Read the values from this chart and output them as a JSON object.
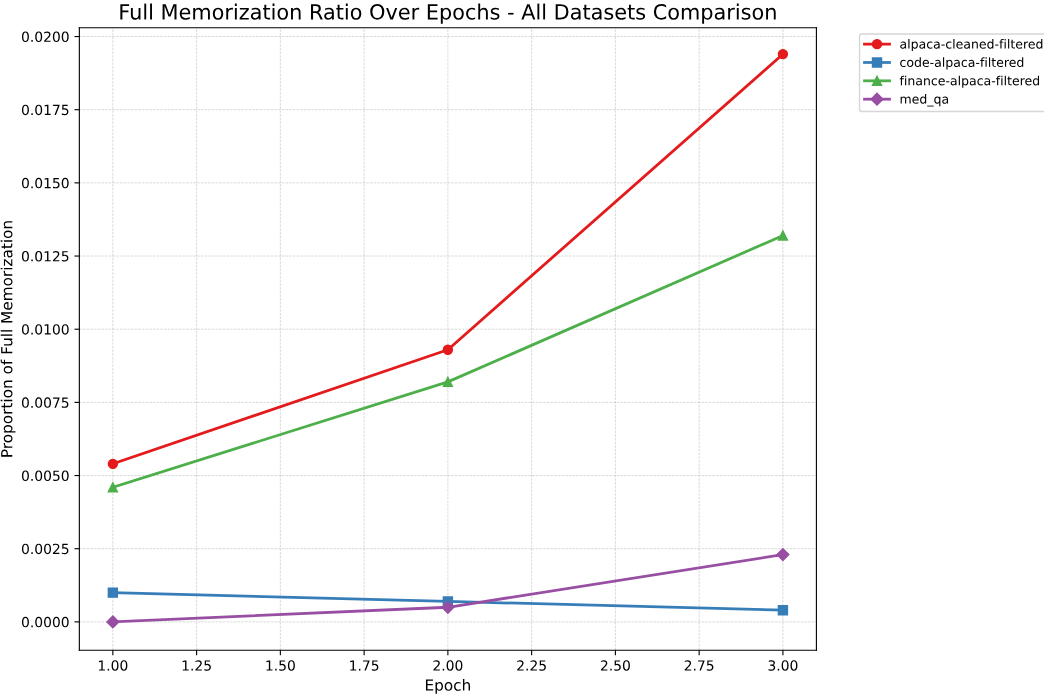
{
  "chart_data": {
    "type": "line",
    "title": "Full Memorization Ratio Over Epochs - All Datasets Comparison",
    "xlabel": "Epoch",
    "ylabel": "Proportion of Full Memorization",
    "x": [
      1,
      2,
      3
    ],
    "series": [
      {
        "name": "alpaca-cleaned-filtered",
        "color": "#e41a1c",
        "marker": "circle",
        "values": [
          0.0054,
          0.0093,
          0.0194
        ]
      },
      {
        "name": "code-alpaca-filtered",
        "color": "#377eb8",
        "marker": "square",
        "values": [
          0.001,
          0.0007,
          0.0004
        ]
      },
      {
        "name": "finance-alpaca-filtered",
        "color": "#4daf4a",
        "marker": "triangle",
        "values": [
          0.0046,
          0.0082,
          0.0132
        ]
      },
      {
        "name": "med_qa",
        "color": "#984ea3",
        "marker": "diamond",
        "values": [
          0.0,
          0.0005,
          0.0023
        ]
      }
    ],
    "xlim": [
      0.9,
      3.1
    ],
    "xticks": [
      {
        "value": 1,
        "label": "1.00"
      },
      {
        "value": 1.25,
        "label": "1.25"
      },
      {
        "value": 1.5,
        "label": "1.50"
      },
      {
        "value": 1.75,
        "label": "1.75"
      },
      {
        "value": 2,
        "label": "2.00"
      },
      {
        "value": 2.25,
        "label": "2.25"
      },
      {
        "value": 2.5,
        "label": "2.50"
      },
      {
        "value": 2.75,
        "label": "2.75"
      },
      {
        "value": 3,
        "label": "3.00"
      }
    ],
    "ylim": [
      -0.00097,
      0.0203
    ],
    "yticks": [
      {
        "value": 0,
        "label": "0.0000"
      },
      {
        "value": 0.0025,
        "label": "0.0025"
      },
      {
        "value": 0.005,
        "label": "0.0050"
      },
      {
        "value": 0.0075,
        "label": "0.0075"
      },
      {
        "value": 0.01,
        "label": "0.0100"
      },
      {
        "value": 0.0125,
        "label": "0.0125"
      },
      {
        "value": 0.015,
        "label": "0.0150"
      },
      {
        "value": 0.0175,
        "label": "0.0175"
      },
      {
        "value": 0.02,
        "label": "0.0200"
      }
    ],
    "grid": true,
    "legend": "top right",
    "line_style": "solid"
  }
}
